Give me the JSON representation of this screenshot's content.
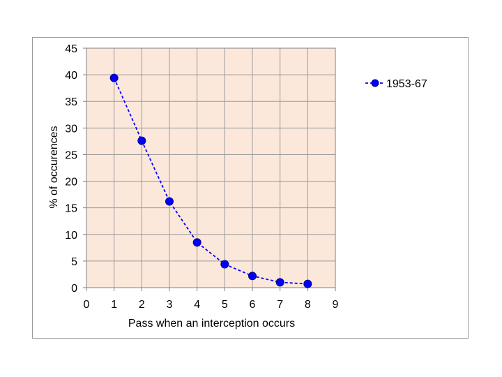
{
  "chart_data": {
    "type": "line",
    "title": "",
    "xlabel": "Pass when an interception occurs",
    "ylabel": "% of occurences",
    "xlim": [
      0,
      9
    ],
    "ylim": [
      0,
      45
    ],
    "x_ticks": [
      0,
      1,
      2,
      3,
      4,
      5,
      6,
      7,
      8,
      9
    ],
    "y_ticks": [
      0,
      5,
      10,
      15,
      20,
      25,
      30,
      35,
      40,
      45
    ],
    "grid": true,
    "plot_background": "#fce8da",
    "grid_color": "#9a9a9a",
    "legend_position": "right",
    "series": [
      {
        "name": "1953-67",
        "color": "#0000ff",
        "line_style": "dashed",
        "marker": "circle",
        "x": [
          1,
          2,
          3,
          4,
          5,
          6,
          7,
          8
        ],
        "y": [
          39.4,
          27.6,
          16.2,
          8.5,
          4.4,
          2.2,
          1.0,
          0.7
        ]
      }
    ]
  }
}
